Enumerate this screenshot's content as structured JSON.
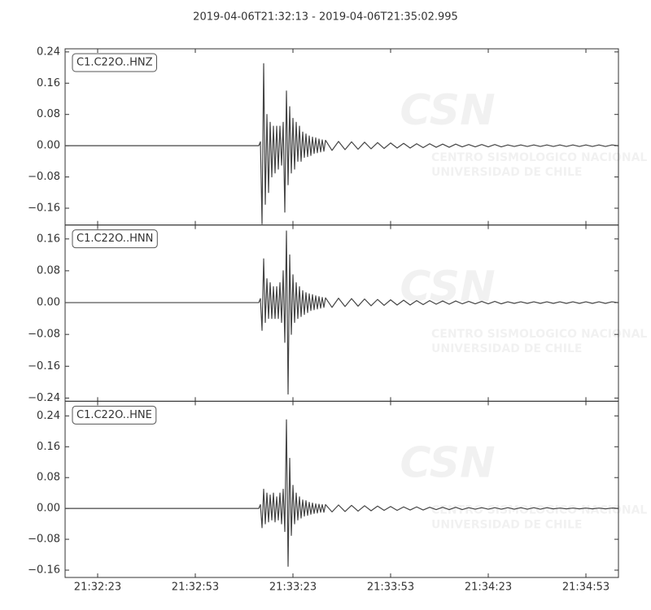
{
  "chart_data": {
    "type": "line",
    "title": "2019-04-06T21:32:13  -  2019-04-06T21:35:02.995",
    "color": "#444444",
    "xlim": [
      0,
      169.995
    ],
    "xticks": [
      {
        "value": 10,
        "label": "21:32:23"
      },
      {
        "value": 40,
        "label": "21:32:53"
      },
      {
        "value": 70,
        "label": "21:33:23"
      },
      {
        "value": 100,
        "label": "21:33:53"
      },
      {
        "value": 130,
        "label": "21:34:23"
      },
      {
        "value": 160,
        "label": "21:34:53"
      }
    ],
    "watermark": {
      "logo": "CSN",
      "lines": [
        "CENTRO SISMOLOGICO NACIONAL",
        "UNIVERSIDAD DE CHILE"
      ]
    },
    "x": [
      0,
      30,
      59.5,
      60,
      60.5,
      61,
      61.5,
      62,
      62.5,
      63,
      63.5,
      64,
      64.5,
      65,
      65.5,
      66,
      66.5,
      67,
      67.5,
      68,
      68.5,
      69,
      69.5,
      70,
      70.5,
      71,
      71.5,
      72,
      72.5,
      73,
      73.5,
      74,
      74.5,
      75,
      75.5,
      76,
      76.5,
      77,
      77.5,
      78,
      78.5,
      79,
      79.5,
      80,
      82,
      84,
      86,
      88,
      90,
      92,
      94,
      96,
      98,
      100,
      102,
      104,
      106,
      108,
      110,
      112,
      114,
      116,
      118,
      120,
      122,
      124,
      126,
      128,
      130,
      132,
      134,
      136,
      138,
      140,
      142,
      144,
      146,
      148,
      150,
      152,
      154,
      156,
      158,
      160,
      162,
      164,
      166,
      168,
      169.9
    ],
    "panels": [
      {
        "name": "C1.C22O..HNZ",
        "ylim": [
          -0.203,
          0.248
        ],
        "yticks": [
          {
            "value": 0.24,
            "label": "0.24"
          },
          {
            "value": 0.16,
            "label": "0.16"
          },
          {
            "value": 0.08,
            "label": "0.08"
          },
          {
            "value": 0,
            "label": "0.00"
          },
          {
            "value": -0.08,
            "label": "−0.08"
          },
          {
            "value": -0.16,
            "label": "−0.16"
          }
        ],
        "values": [
          0,
          0,
          0,
          0.01,
          -0.2,
          0.21,
          -0.15,
          0.08,
          -0.12,
          0.06,
          -0.08,
          0.05,
          -0.07,
          0.05,
          -0.06,
          0.05,
          -0.05,
          0.06,
          -0.17,
          0.14,
          -0.1,
          0.1,
          -0.07,
          0.07,
          -0.06,
          0.06,
          -0.04,
          0.05,
          -0.04,
          0.035,
          -0.03,
          0.03,
          -0.028,
          0.025,
          -0.025,
          0.022,
          -0.02,
          0.02,
          -0.018,
          0.017,
          -0.016,
          0.015,
          -0.014,
          0.014,
          -0.012,
          0.011,
          -0.01,
          0.01,
          -0.009,
          0.009,
          -0.008,
          0.008,
          -0.007,
          0.007,
          -0.006,
          0.006,
          -0.006,
          0.005,
          -0.005,
          0.005,
          -0.004,
          0.004,
          -0.004,
          0.004,
          -0.003,
          0.003,
          -0.003,
          0.003,
          -0.003,
          0.003,
          -0.003,
          0.002,
          -0.002,
          0.002,
          -0.002,
          0.002,
          -0.002,
          0.002,
          -0.002,
          0.002,
          -0.002,
          0.002,
          -0.002,
          0.002,
          -0.002,
          0.002,
          -0.002,
          0.002,
          0
        ]
      },
      {
        "name": "C1.C22O..HNN",
        "ylim": [
          -0.248,
          0.195
        ],
        "yticks": [
          {
            "value": 0.16,
            "label": "0.16"
          },
          {
            "value": 0.08,
            "label": "0.08"
          },
          {
            "value": 0,
            "label": "0.00"
          },
          {
            "value": -0.08,
            "label": "−0.08"
          },
          {
            "value": -0.16,
            "label": "−0.16"
          },
          {
            "value": -0.24,
            "label": "−0.24"
          }
        ],
        "values": [
          0,
          0,
          0,
          0.01,
          -0.07,
          0.11,
          -0.05,
          0.06,
          -0.04,
          0.05,
          -0.04,
          0.04,
          -0.04,
          0.04,
          -0.04,
          0.05,
          -0.05,
          0.08,
          -0.1,
          0.18,
          -0.23,
          0.12,
          -0.08,
          0.07,
          -0.05,
          0.05,
          -0.04,
          0.04,
          -0.035,
          0.03,
          -0.03,
          0.025,
          -0.025,
          0.022,
          -0.02,
          0.02,
          -0.018,
          0.017,
          -0.016,
          0.015,
          -0.014,
          0.013,
          -0.012,
          0.012,
          -0.012,
          0.011,
          -0.01,
          0.01,
          -0.009,
          0.009,
          -0.008,
          0.008,
          -0.007,
          0.007,
          -0.006,
          0.006,
          -0.006,
          0.005,
          -0.005,
          0.005,
          -0.004,
          0.004,
          -0.004,
          0.004,
          -0.003,
          0.003,
          -0.003,
          0.003,
          -0.003,
          0.003,
          -0.003,
          0.002,
          -0.002,
          0.002,
          -0.002,
          0.002,
          -0.002,
          0.002,
          -0.002,
          0.002,
          -0.002,
          0.002,
          -0.002,
          0.002,
          -0.002,
          0.002,
          -0.002,
          0.002,
          0
        ]
      },
      {
        "name": "C1.C22O..HNE",
        "ylim": [
          -0.179,
          0.278
        ],
        "yticks": [
          {
            "value": 0.24,
            "label": "0.24"
          },
          {
            "value": 0.16,
            "label": "0.16"
          },
          {
            "value": 0.08,
            "label": "0.08"
          },
          {
            "value": 0,
            "label": "0.00"
          },
          {
            "value": -0.08,
            "label": "−0.08"
          },
          {
            "value": -0.16,
            "label": "−0.16"
          }
        ],
        "values": [
          0,
          0,
          0,
          0.01,
          -0.05,
          0.05,
          -0.04,
          0.04,
          -0.035,
          0.035,
          -0.03,
          0.04,
          -0.035,
          0.03,
          -0.03,
          0.04,
          -0.04,
          0.05,
          -0.06,
          0.23,
          -0.15,
          0.13,
          -0.07,
          0.06,
          -0.04,
          0.04,
          -0.03,
          0.03,
          -0.025,
          0.022,
          -0.02,
          0.02,
          -0.018,
          0.016,
          -0.015,
          0.014,
          -0.013,
          0.012,
          -0.012,
          0.011,
          -0.01,
          0.01,
          -0.01,
          0.01,
          -0.009,
          0.009,
          -0.008,
          0.008,
          -0.007,
          0.007,
          -0.006,
          0.006,
          -0.005,
          0.005,
          -0.005,
          0.004,
          -0.004,
          0.004,
          -0.004,
          0.003,
          -0.003,
          0.003,
          -0.003,
          0.003,
          -0.003,
          0.002,
          -0.002,
          0.002,
          -0.002,
          0.002,
          -0.002,
          0.002,
          -0.002,
          0.002,
          -0.002,
          0.002,
          -0.002,
          0.002,
          -0.001,
          0.001,
          -0.001,
          0.001,
          -0.001,
          0.001,
          -0.001,
          0.001,
          -0.001,
          0.001,
          0
        ]
      }
    ]
  }
}
